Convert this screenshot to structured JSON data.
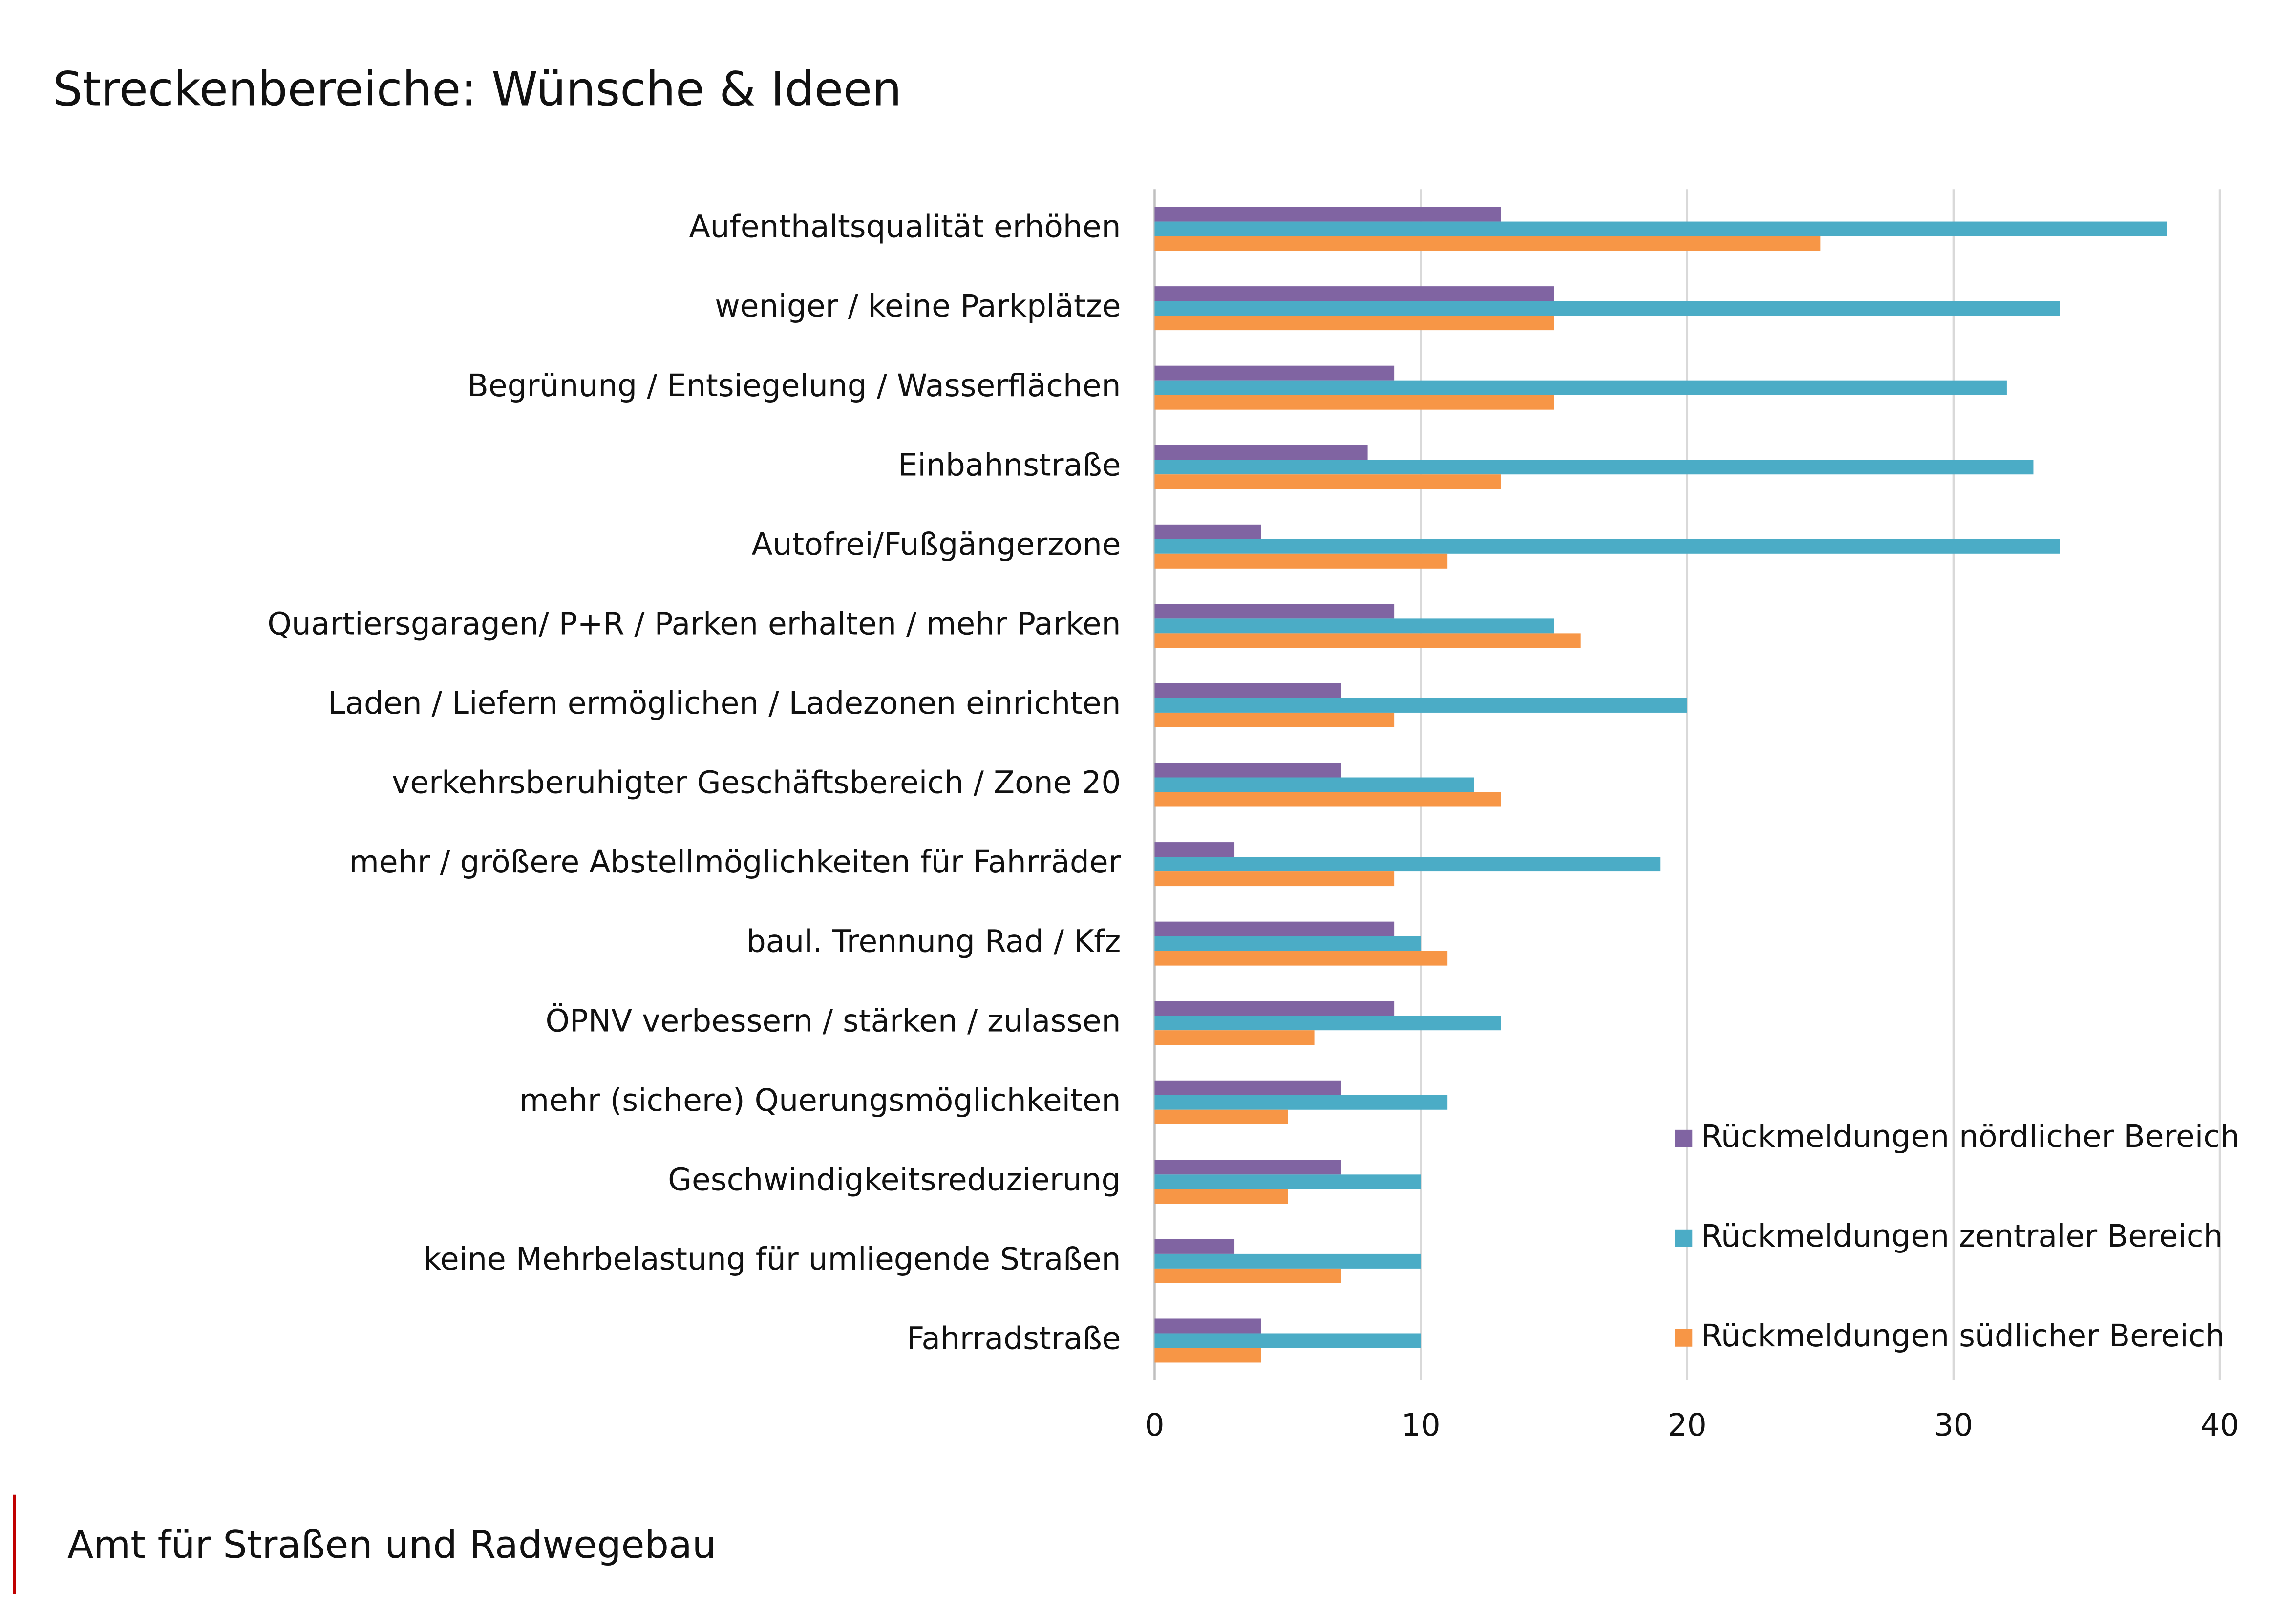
{
  "chart_data": {
    "type": "hbar",
    "title": "Streckenbereiche: Wünsche & Ideen",
    "categories": [
      "Aufenthaltsqualität erhöhen",
      "weniger / keine Parkplätze",
      "Begrünung / Entsiegelung / Wasserflächen",
      "Einbahnstraße",
      "Autofrei/Fußgängerzone",
      "Quartiersgaragen/ P+R / Parken erhalten / mehr Parken",
      "Laden / Liefern ermöglichen / Ladezonen einrichten",
      "verkehrsberuhigter Geschäftsbereich / Zone 20",
      "mehr / größere Abstellmöglichkeiten für Fahrräder",
      "baul. Trennung Rad / Kfz",
      "ÖPNV verbessern / stärken / zulassen",
      "mehr (sichere) Querungsmöglichkeiten",
      "Geschwindigkeitsreduzierung",
      "keine Mehrbelastung für umliegende Straßen",
      "Fahrradstraße"
    ],
    "series": [
      {
        "name": "Rückmeldungen nördlicher Bereich",
        "color": "#8064a2",
        "values": [
          13,
          15,
          9,
          8,
          4,
          9,
          7,
          7,
          3,
          9,
          9,
          7,
          7,
          3,
          4
        ]
      },
      {
        "name": "Rückmeldungen zentraler Bereich",
        "color": "#4bacc6",
        "values": [
          38,
          34,
          32,
          33,
          34,
          15,
          20,
          12,
          19,
          10,
          13,
          11,
          10,
          10,
          10
        ]
      },
      {
        "name": "Rückmeldungen südlicher Bereich",
        "color": "#f79646",
        "values": [
          25,
          15,
          15,
          13,
          11,
          16,
          9,
          13,
          9,
          11,
          6,
          5,
          5,
          7,
          4
        ]
      }
    ],
    "xlim": [
      0,
      40
    ],
    "xticks": [
      0,
      10,
      20,
      30,
      40
    ],
    "grid": true,
    "legend": "lower right"
  },
  "footer": "Amt für Straßen und Radwegebau"
}
